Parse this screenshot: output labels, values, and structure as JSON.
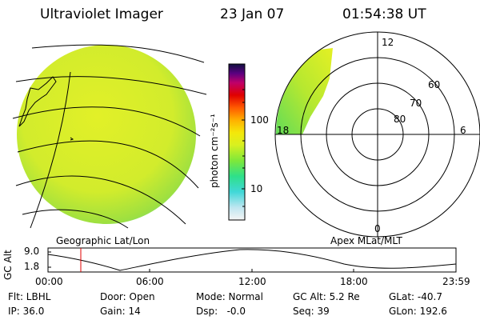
{
  "header": {
    "instrument": "Ultraviolet Imager",
    "date": "23 Jan 07",
    "time": "01:54:38 UT"
  },
  "colorbar": {
    "unit_label": "photon cm⁻²s⁻¹",
    "ticks": [
      "100",
      "10"
    ],
    "scale": "log",
    "colors": [
      "#f5f5f5",
      "#bfe6f0",
      "#40d8d8",
      "#2ee08a",
      "#7ee83a",
      "#d8f020",
      "#f4e80a",
      "#ffb000",
      "#ff5a00",
      "#e00000",
      "#c0006a",
      "#5a0080",
      "#101040"
    ]
  },
  "geo_panel": {
    "caption": "Geographic Lat/Lon",
    "fill_color": "#d8ee28"
  },
  "polar_panel": {
    "caption": "Apex MLat/MLT",
    "mlt_labels": {
      "top": "12",
      "left": "18",
      "right": "6",
      "bottom": "0"
    },
    "lat_labels": [
      "60",
      "70",
      "80"
    ]
  },
  "altitude_plot": {
    "ylabel": "GC Alt",
    "y_ticks": [
      "9.0",
      "1.8"
    ],
    "x_ticks": [
      "00:00",
      "06:00",
      "12:00",
      "18:00",
      "23:59"
    ],
    "marker_color": "#e00000"
  },
  "info": {
    "row1": {
      "filter": "Flt: LBHL",
      "door": "Door: Open",
      "mode": "Mode: Normal",
      "gc_alt": "GC Alt: 5.2 Re",
      "glat": "GLat: -40.7"
    },
    "row2": {
      "ip": "IP: 36.0",
      "gain": "Gain: 14",
      "dsp": "Dsp:   -0.0",
      "seq": "Seq: 39",
      "glon": "GLon: 192.6"
    }
  }
}
